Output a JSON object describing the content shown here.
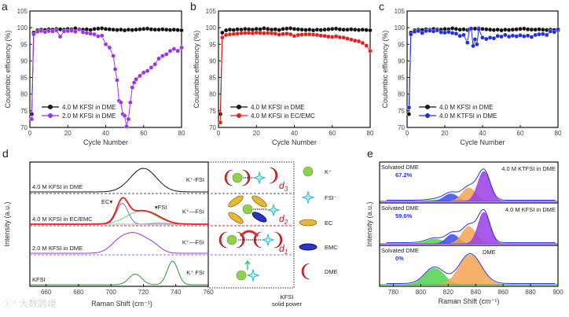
{
  "colors": {
    "black": "#111111",
    "purple": "#9b30f0",
    "red": "#e8201a",
    "blue": "#1f2fe8",
    "green": "#2a9a2a",
    "gray": "#555555",
    "dme_red": "#c8141b",
    "fit_green": "#4fd24f",
    "fit_blue": "#3a4cf0",
    "fit_orange": "#f5a550",
    "fit_purple": "#9a3ce6",
    "accent_blue": "#2a34e0"
  },
  "chart_data": [
    {
      "panel": "a",
      "type": "line",
      "xlabel": "Cycle Number",
      "ylabel": "Coulombic efficiency (%)",
      "xlim": [
        0,
        80
      ],
      "ylim": [
        70,
        105
      ],
      "xticks": [
        0,
        20,
        40,
        60,
        80
      ],
      "yticks": [
        70,
        75,
        80,
        85,
        90,
        95,
        100,
        105
      ],
      "legend_position": "bottom-left",
      "series": [
        {
          "name": "4.0 M KFSI in DME",
          "color": "#111111",
          "x": [
            1,
            2,
            4,
            6,
            8,
            10,
            12,
            14,
            16,
            18,
            20,
            22,
            24,
            26,
            28,
            30,
            32,
            34,
            36,
            38,
            40,
            42,
            44,
            46,
            48,
            50,
            52,
            54,
            56,
            58,
            60,
            62,
            64,
            66,
            68,
            70,
            72,
            74,
            76,
            78,
            80
          ],
          "y": [
            74,
            98.5,
            99.2,
            99.4,
            99.3,
            99.5,
            99.4,
            99.6,
            99.5,
            99.4,
            99.6,
            99.5,
            99.8,
            99.6,
            99.4,
            99.5,
            99.3,
            99.6,
            99.7,
            99.8,
            99.6,
            99.5,
            99.4,
            99.3,
            99.4,
            99.2,
            99.4,
            99.3,
            99.4,
            99.5,
            99.6,
            99.7,
            99.5,
            99.4,
            99.4,
            99.5,
            99.4,
            99.3,
            99.4,
            99.3,
            99.2
          ]
        },
        {
          "name": "2.0 M KFSI in DME",
          "color": "#9b30f0",
          "x": [
            1,
            2,
            4,
            6,
            8,
            10,
            12,
            14,
            16,
            18,
            20,
            22,
            24,
            26,
            28,
            30,
            32,
            34,
            36,
            38,
            40,
            42,
            44,
            45,
            46,
            47,
            48,
            49,
            50,
            51,
            52,
            53,
            54,
            55,
            56,
            58,
            60,
            62,
            64,
            66,
            68,
            70,
            72,
            74,
            76,
            78,
            80
          ],
          "y": [
            72.5,
            98,
            98.8,
            99,
            98.7,
            99,
            98.9,
            99.2,
            97.3,
            98.9,
            99,
            99.1,
            98.8,
            99.5,
            98.6,
            98.4,
            98.2,
            98,
            97.4,
            97.6,
            95,
            94,
            91.5,
            87.5,
            84.2,
            78,
            77.5,
            74,
            73.5,
            70.3,
            72.5,
            77.5,
            82,
            83.5,
            84.5,
            85.5,
            86.5,
            87,
            88,
            89,
            90.7,
            91.5,
            92,
            93,
            93.6,
            93,
            94
          ]
        }
      ]
    },
    {
      "panel": "b",
      "type": "line",
      "xlabel": "Cycle Number",
      "ylabel": "Coulombic efficiency (%)",
      "xlim": [
        0,
        80
      ],
      "ylim": [
        70,
        105
      ],
      "xticks": [
        0,
        20,
        40,
        60,
        80
      ],
      "yticks": [
        70,
        75,
        80,
        85,
        90,
        95,
        100,
        105
      ],
      "legend_position": "bottom-left",
      "series": [
        {
          "name": "4.0 M KFSI in DME",
          "color": "#111111",
          "x": [
            1,
            2,
            4,
            6,
            8,
            10,
            12,
            14,
            16,
            18,
            20,
            22,
            24,
            26,
            28,
            30,
            32,
            34,
            36,
            38,
            40,
            42,
            44,
            46,
            48,
            50,
            52,
            54,
            56,
            58,
            60,
            62,
            64,
            66,
            68,
            70,
            72,
            74,
            76,
            78,
            80
          ],
          "y": [
            74,
            98.5,
            99.2,
            99.4,
            99.3,
            99.5,
            99.4,
            99.6,
            99.5,
            99.4,
            99.6,
            99.5,
            99.8,
            99.6,
            99.4,
            99.5,
            99.3,
            99.6,
            99.7,
            99.8,
            99.6,
            99.5,
            99.4,
            99.3,
            99.4,
            99.2,
            99.4,
            99.3,
            99.4,
            99.5,
            99.6,
            99.7,
            99.5,
            99.4,
            99.4,
            99.5,
            99.4,
            99.3,
            99.4,
            99.3,
            99.2
          ]
        },
        {
          "name": "4.0 M KFSI in EC/EMC",
          "color": "#e8201a",
          "x": [
            1,
            2,
            4,
            6,
            8,
            10,
            12,
            14,
            16,
            18,
            20,
            22,
            24,
            26,
            28,
            30,
            32,
            34,
            36,
            38,
            40,
            42,
            44,
            46,
            48,
            50,
            52,
            54,
            56,
            58,
            60,
            62,
            64,
            66,
            68,
            70,
            72,
            74,
            76,
            78,
            80
          ],
          "y": [
            71.5,
            97,
            97.8,
            98,
            98.1,
            98.2,
            98.3,
            98.4,
            98.4,
            98.3,
            98.5,
            98.4,
            98.3,
            98.4,
            98.3,
            98.2,
            97.9,
            98.1,
            98.2,
            98,
            97.5,
            97.8,
            97.9,
            98,
            98,
            97.9,
            97.8,
            97.6,
            97.5,
            97.3,
            97.2,
            97.4,
            97.1,
            97,
            96.7,
            96.4,
            96.1,
            95.9,
            95.4,
            94.6,
            93
          ]
        }
      ]
    },
    {
      "panel": "c",
      "type": "line",
      "xlabel": "Cycle Number",
      "ylabel": "Coulombic efficiency (%)",
      "xlim": [
        0,
        80
      ],
      "ylim": [
        70,
        105
      ],
      "xticks": [
        0,
        20,
        40,
        60,
        80
      ],
      "yticks": [
        70,
        75,
        80,
        85,
        90,
        95,
        100,
        105
      ],
      "legend_position": "bottom-left",
      "series": [
        {
          "name": "4.0 M KFSI in DME",
          "color": "#111111",
          "x": [
            1,
            2,
            4,
            6,
            8,
            10,
            12,
            14,
            16,
            18,
            20,
            22,
            24,
            26,
            28,
            30,
            32,
            34,
            36,
            38,
            40,
            42,
            44,
            46,
            48,
            50,
            52,
            54,
            56,
            58,
            60,
            62,
            64,
            66,
            68,
            70,
            72,
            74,
            76,
            78,
            80
          ],
          "y": [
            74,
            98.5,
            99.2,
            99.4,
            99.3,
            99.5,
            99.4,
            99.6,
            99.5,
            99.4,
            99.6,
            99.5,
            99.8,
            99.6,
            99.4,
            99.5,
            99.3,
            99.6,
            99.7,
            99.8,
            99.6,
            99.5,
            99.4,
            99.3,
            99.4,
            99.2,
            99.4,
            99.3,
            99.4,
            99.5,
            99.6,
            99.7,
            99.5,
            99.4,
            99.4,
            99.5,
            99.4,
            99.3,
            99.4,
            99.3,
            99.2
          ]
        },
        {
          "name": "4.0 M KTFSI in DME",
          "color": "#1f2fe8",
          "x": [
            1,
            2,
            4,
            6,
            8,
            10,
            12,
            14,
            16,
            18,
            20,
            22,
            24,
            26,
            28,
            30,
            32,
            33,
            34,
            35,
            36,
            37,
            38,
            40,
            42,
            44,
            46,
            48,
            50,
            52,
            54,
            56,
            58,
            60,
            62,
            64,
            66,
            68,
            70,
            72,
            74,
            76,
            78,
            80
          ],
          "y": [
            76,
            98,
            98.8,
            99,
            98.4,
            99,
            99.1,
            98.9,
            99.2,
            98.6,
            98.5,
            98.7,
            98.4,
            98.2,
            97.5,
            97.8,
            95.5,
            99.5,
            99.7,
            94.5,
            96.5,
            95,
            99.5,
            97,
            96.6,
            97,
            96.8,
            97.5,
            97.3,
            97.8,
            97.3,
            97.6,
            97.4,
            97.7,
            97.4,
            97.6,
            97.2,
            97.8,
            98,
            98.1,
            97.8,
            98.9,
            98.7,
            99.5
          ]
        }
      ]
    },
    {
      "panel": "d",
      "type": "line",
      "xlabel": "Raman Shift (cm⁻¹)",
      "ylabel": "Intensity (a.u.)",
      "xlim": [
        650,
        760
      ],
      "xticks": [
        660,
        680,
        700,
        720,
        740,
        760
      ],
      "traces": [
        {
          "label": "4.0 M KFSI in DME",
          "tag": "K⁺-FSI",
          "color": "#111111",
          "components": [
            {
              "center": 720,
              "sigma": 8,
              "amp": 1
            }
          ]
        },
        {
          "label": "4.0 M KFSI in EC/EMC",
          "tag": "K⁺—FSI",
          "color": "#e8201a",
          "annotations": [
            "EC",
            "FSI"
          ],
          "components": [
            {
              "center": 707,
              "sigma": 3.5,
              "amp": 0.85,
              "color": "#5a5ab4"
            },
            {
              "center": 719,
              "sigma": 9,
              "amp": 0.55,
              "color": "#4fd24f"
            },
            {
              "center": 730,
              "sigma": 5,
              "amp": 0.05,
              "color": "#999999"
            }
          ]
        },
        {
          "label": "2.0 M KFSI in DME",
          "tag": "K⁺—FSI",
          "color": "#9b30f0",
          "components": [
            {
              "center": 706,
              "sigma": 6,
              "amp": 0.6
            },
            {
              "center": 716,
              "sigma": 6,
              "amp": 0.75
            },
            {
              "center": 726,
              "sigma": 5,
              "amp": 0.35
            }
          ]
        },
        {
          "label": "KFSI",
          "tag": "K⁺ FSI",
          "color": "#2a9a2a",
          "components": [
            {
              "center": 715,
              "sigma": 4,
              "amp": 0.45
            },
            {
              "center": 738,
              "sigma": 3.3,
              "amp": 1
            }
          ]
        }
      ],
      "distances": [
        "d3",
        "d2",
        "d1"
      ],
      "schematic_caption": [
        "KFSI",
        "solid power"
      ],
      "legend": [
        {
          "icon": "k-ion",
          "label": "K⁺"
        },
        {
          "icon": "fsi-anion",
          "label": "FSI⁻"
        },
        {
          "icon": "ec-molecule",
          "label": "EC"
        },
        {
          "icon": "emc-molecule",
          "label": "EMC"
        },
        {
          "icon": "dme-molecule",
          "label": "DME"
        }
      ]
    },
    {
      "panel": "e",
      "type": "area",
      "xlabel": "Raman Shift (cm⁻¹)",
      "ylabel": "Intensity (a.u.)",
      "xlim": [
        770,
        900
      ],
      "xticks": [
        780,
        800,
        820,
        840,
        860,
        880,
        900
      ],
      "traces": [
        {
          "label": "4.0 M KTFSI in DME",
          "note": "Solvated DME",
          "value": "67.2%",
          "components": [
            {
              "center": 812,
              "sigma": 6,
              "amp": 0.05,
              "color": "#4fd24f"
            },
            {
              "center": 822,
              "sigma": 5,
              "amp": 0.25,
              "color": "#3a4cf0"
            },
            {
              "center": 835,
              "sigma": 5,
              "amp": 0.45,
              "color": "#f5a550"
            },
            {
              "center": 846,
              "sigma": 4.5,
              "amp": 1,
              "color": "#9a3ce6"
            }
          ]
        },
        {
          "label": "4.0 M KFSI in DME",
          "note": "Solvated DME",
          "value": "59.6%",
          "components": [
            {
              "center": 810,
              "sigma": 6,
              "amp": 0.15,
              "color": "#4fd24f"
            },
            {
              "center": 823,
              "sigma": 4.5,
              "amp": 0.3,
              "color": "#3a4cf0"
            },
            {
              "center": 835,
              "sigma": 5,
              "amp": 0.55,
              "color": "#f5a550"
            },
            {
              "center": 846,
              "sigma": 4.3,
              "amp": 1,
              "color": "#9a3ce6"
            }
          ]
        },
        {
          "label": "DME",
          "note": "Solvated DME",
          "value": "0%",
          "components": [
            {
              "center": 810,
              "sigma": 7,
              "amp": 0.55,
              "color": "#4fd24f"
            },
            {
              "center": 836,
              "sigma": 8,
              "amp": 1,
              "color": "#f5a550"
            }
          ]
        }
      ]
    }
  ],
  "panel_letters": [
    "a",
    "b",
    "c",
    "d",
    "e"
  ],
  "watermark": "大数跨境"
}
